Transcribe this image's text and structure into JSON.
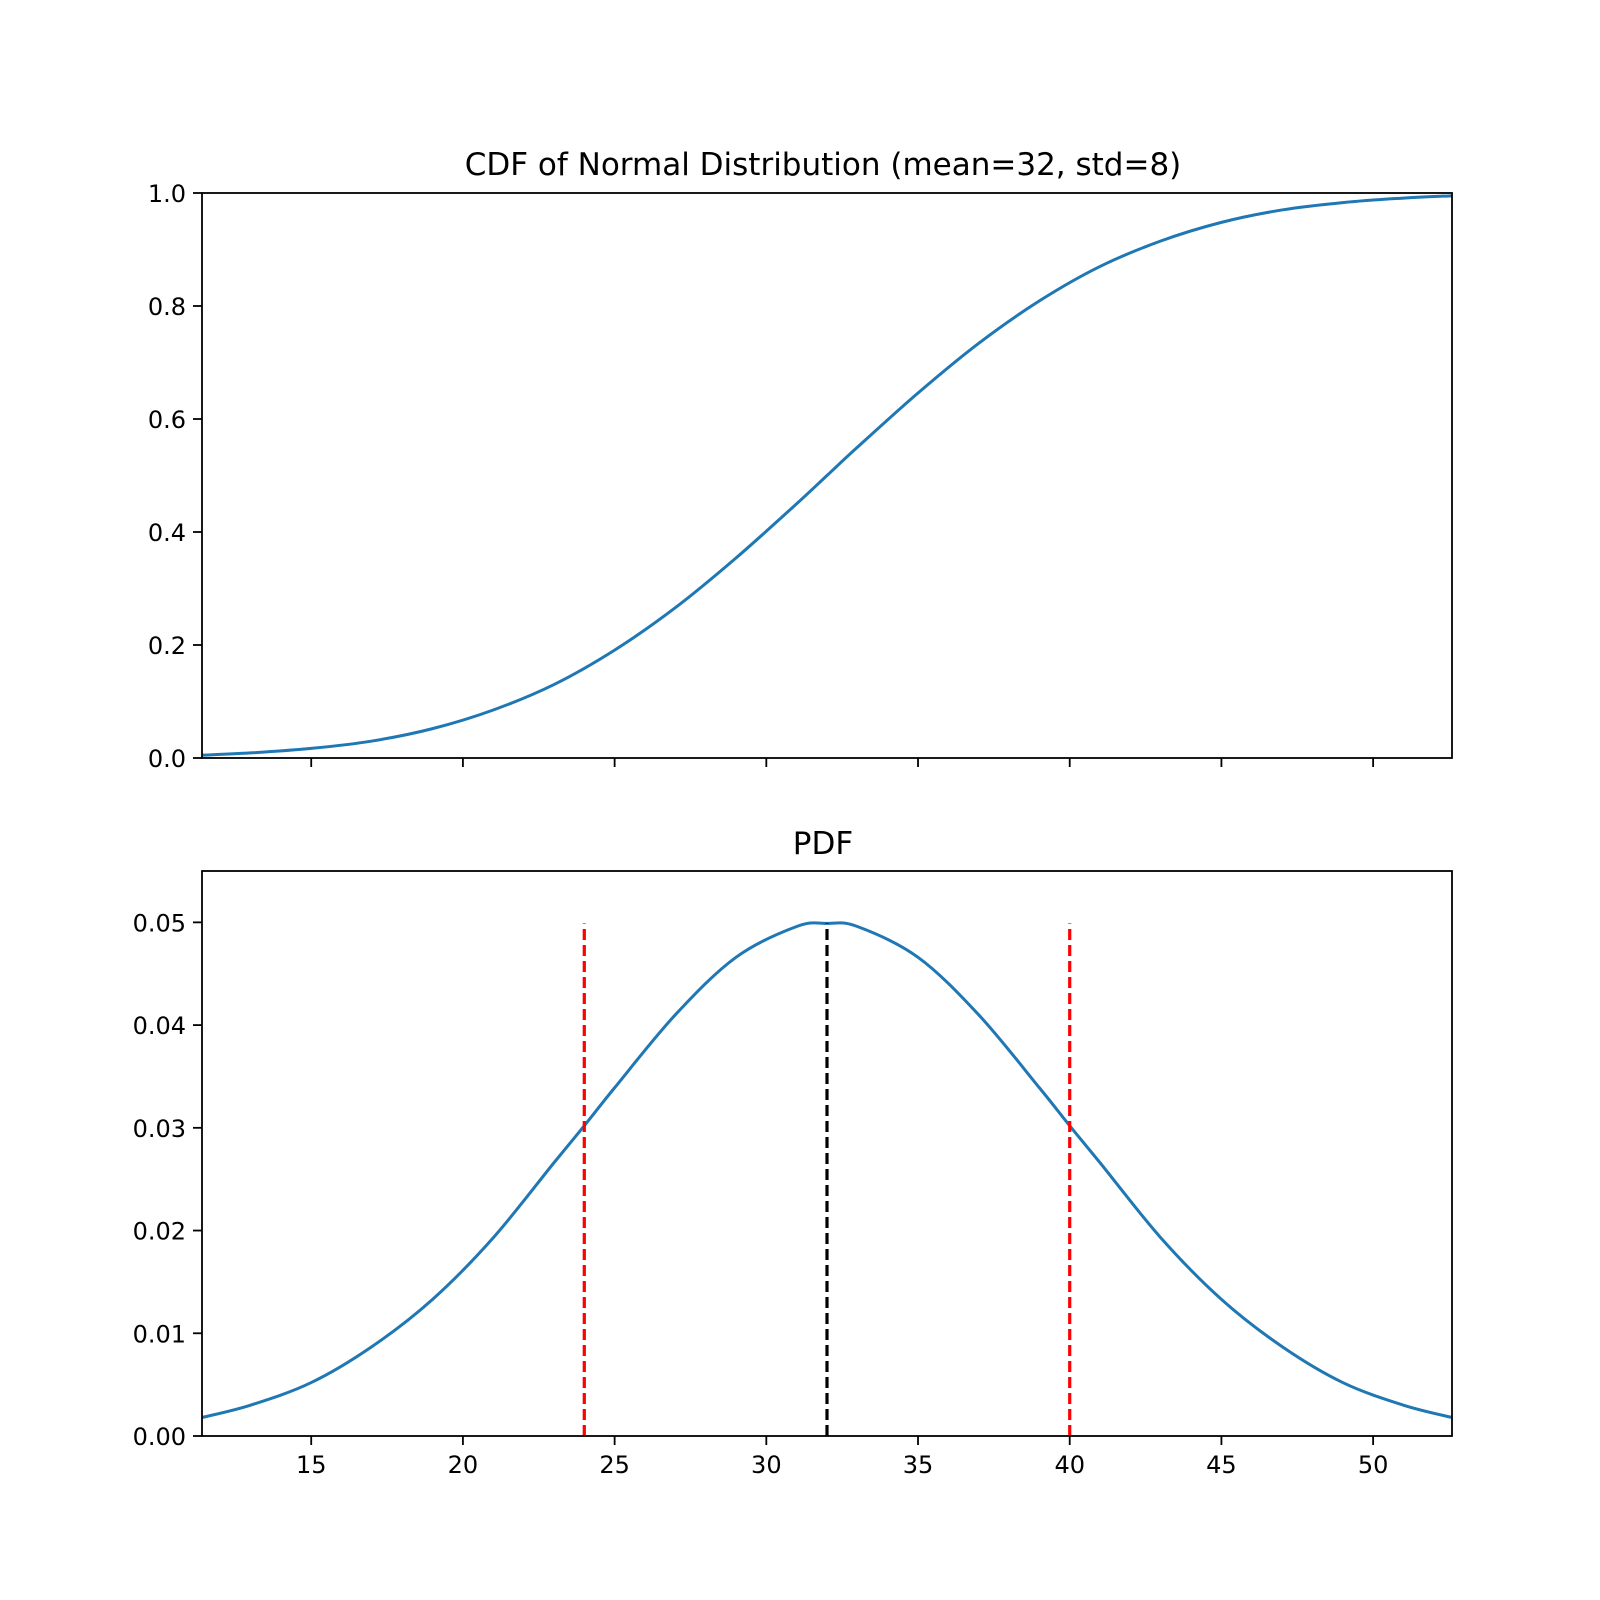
{
  "chart_data": [
    {
      "type": "line",
      "title": "CDF of Normal Distribution (mean=32, std=8)",
      "xlabel": "",
      "ylabel": "",
      "xlim": [
        11.4,
        52.6
      ],
      "ylim": [
        0.0,
        1.0
      ],
      "grid": false,
      "show_x_tick_labels": false,
      "x_ticks": [
        15,
        20,
        25,
        30,
        35,
        40,
        45,
        50
      ],
      "y_ticks": [
        "0.0",
        "0.2",
        "0.4",
        "0.6",
        "0.8",
        "1.0"
      ],
      "series": [
        {
          "color": "#1f77b4",
          "x": [
            11.4,
            13,
            15,
            17,
            19,
            21,
            23,
            25,
            27,
            29,
            31,
            32,
            33,
            35,
            37,
            39,
            41,
            43,
            45,
            47,
            49,
            51,
            52.6
          ],
          "y": [
            0.005,
            0.009,
            0.017,
            0.03,
            0.052,
            0.085,
            0.13,
            0.191,
            0.266,
            0.354,
            0.45,
            0.5,
            0.55,
            0.646,
            0.734,
            0.809,
            0.87,
            0.915,
            0.948,
            0.97,
            0.983,
            0.991,
            0.995
          ]
        }
      ]
    },
    {
      "type": "line",
      "title": "PDF",
      "xlabel": "",
      "ylabel": "",
      "xlim": [
        11.4,
        52.6
      ],
      "ylim": [
        0.0,
        0.055
      ],
      "grid": false,
      "show_x_tick_labels": true,
      "x_ticks": [
        15,
        20,
        25,
        30,
        35,
        40,
        45,
        50
      ],
      "y_ticks": [
        "0.00",
        "0.01",
        "0.02",
        "0.03",
        "0.04",
        "0.05"
      ],
      "series": [
        {
          "color": "#1f77b4",
          "x": [
            11.4,
            13,
            15,
            17,
            19,
            21,
            23,
            24,
            25,
            27,
            29,
            31,
            32,
            33,
            35,
            37,
            39,
            40,
            41,
            43,
            45,
            47,
            49,
            51,
            52.6
          ],
          "y": [
            0.0018,
            0.003,
            0.0052,
            0.0087,
            0.0133,
            0.0193,
            0.0266,
            0.0302,
            0.0339,
            0.041,
            0.0466,
            0.0496,
            0.0499,
            0.0496,
            0.0466,
            0.041,
            0.0339,
            0.0302,
            0.0266,
            0.0193,
            0.0133,
            0.0087,
            0.0052,
            0.003,
            0.0018
          ]
        }
      ],
      "vlines": [
        {
          "x": 24,
          "y_max": 0.0499,
          "color": "#ff0000",
          "style": "dashed"
        },
        {
          "x": 32,
          "y_max": 0.0499,
          "color": "#000000",
          "style": "dashed"
        },
        {
          "x": 40,
          "y_max": 0.0499,
          "color": "#ff0000",
          "style": "dashed"
        }
      ]
    }
  ]
}
